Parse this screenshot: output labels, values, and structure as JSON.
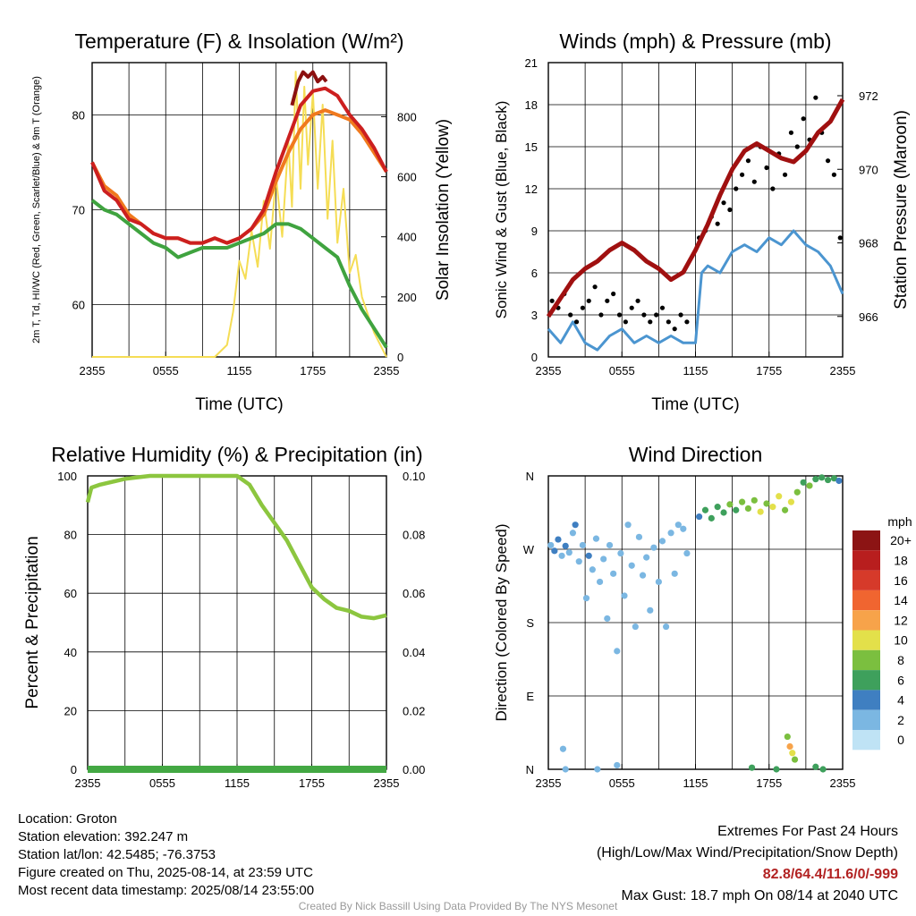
{
  "chart_data": [
    {
      "type": "line",
      "title": "Temperature (F) & Insolation (W/m²)",
      "xlabel": "Time (UTC)",
      "ylabel": "2m T, Td, HI/WC (Red, Green, Scarlet/Blue) & 9m T (Orange)",
      "y2label": "Solar Insolation (Yellow)",
      "x_ticks": [
        "2355",
        "0555",
        "1155",
        "1755",
        "2355"
      ],
      "y_ticks": [
        60,
        70,
        80
      ],
      "y2_ticks": [
        0,
        200,
        400,
        600,
        800
      ],
      "ylim": [
        54.5,
        85.5
      ],
      "y2lim": [
        0,
        980
      ],
      "grid": true,
      "series": [
        {
          "axis": "left",
          "color": "#cc1f1f",
          "x": [
            0,
            1,
            2,
            3,
            4,
            5,
            6,
            7,
            8,
            9,
            10,
            11,
            12,
            13,
            14,
            15,
            16,
            17,
            18,
            19,
            20,
            21,
            22,
            23,
            24
          ],
          "values": [
            75.0,
            72.0,
            71.0,
            69.0,
            68.5,
            67.5,
            67.0,
            67.0,
            66.5,
            66.5,
            67.0,
            66.5,
            67.0,
            68.0,
            70.0,
            74.0,
            77.5,
            81.0,
            82.5,
            82.8,
            82.0,
            80.0,
            78.5,
            76.5,
            74.0
          ]
        },
        {
          "axis": "left",
          "color": "#f07a1e",
          "x": [
            0,
            1,
            2,
            3,
            4,
            5,
            6,
            7,
            8,
            9,
            10,
            11,
            12,
            13,
            14,
            15,
            16,
            17,
            18,
            19,
            20,
            21,
            22,
            23,
            24
          ],
          "values": [
            75.0,
            72.5,
            71.5,
            69.5,
            68.5,
            67.5,
            67.0,
            67.0,
            66.5,
            66.5,
            67.0,
            66.5,
            67.0,
            68.0,
            69.5,
            73.0,
            76.0,
            78.5,
            80.0,
            80.5,
            80.0,
            79.5,
            78.0,
            76.0,
            74.0
          ]
        },
        {
          "axis": "left",
          "color": "#3fa33f",
          "x": [
            0,
            1,
            2,
            3,
            4,
            5,
            6,
            7,
            8,
            9,
            10,
            11,
            12,
            13,
            14,
            15,
            16,
            17,
            18,
            19,
            20,
            21,
            22,
            23,
            24
          ],
          "values": [
            71.0,
            70.0,
            69.5,
            68.5,
            67.5,
            66.5,
            66.0,
            65.0,
            65.5,
            66.0,
            66.0,
            66.0,
            66.5,
            67.0,
            67.5,
            68.5,
            68.5,
            68.0,
            67.0,
            66.0,
            65.0,
            62.0,
            59.5,
            57.5,
            55.5
          ]
        },
        {
          "axis": "left",
          "color": "#8b1010",
          "x": [
            16.3,
            16.8,
            17.2,
            17.6,
            18.0,
            18.4,
            18.8,
            19.1
          ],
          "values": [
            81.0,
            83.5,
            84.5,
            84.0,
            84.5,
            83.5,
            84.0,
            83.5
          ]
        },
        {
          "axis": "right",
          "color": "#f5dd55",
          "x": [
            0,
            10,
            11,
            11.5,
            12,
            12.5,
            13,
            13.5,
            14,
            14.5,
            15,
            15.5,
            16,
            16.3,
            16.6,
            17,
            17.3,
            17.6,
            18,
            18.4,
            18.8,
            19.2,
            19.6,
            20,
            20.5,
            21,
            21.5,
            22,
            23,
            24
          ],
          "values": [
            0,
            0,
            40,
            150,
            320,
            260,
            420,
            300,
            520,
            360,
            600,
            400,
            720,
            500,
            950,
            560,
            900,
            640,
            880,
            560,
            840,
            460,
            720,
            380,
            560,
            280,
            340,
            200,
            80,
            0
          ]
        }
      ]
    },
    {
      "type": "line",
      "title": "Winds (mph) & Pressure (mb)",
      "xlabel": "Time (UTC)",
      "ylabel": "Sonic Wind & Gust (Blue, Black)",
      "y2label": "Station Pressure (Maroon)",
      "x_ticks": [
        "2355",
        "0555",
        "1155",
        "1755",
        "2355"
      ],
      "y_ticks": [
        0,
        3,
        6,
        9,
        12,
        15,
        18,
        21
      ],
      "y2_ticks": [
        966,
        968,
        970,
        972
      ],
      "ylim": [
        0,
        21
      ],
      "y2lim": [
        964.9,
        972.9
      ],
      "grid": true,
      "series": [
        {
          "name_hidden": "wind",
          "axis": "left",
          "color": "#4b95d0",
          "x": [
            0,
            1,
            2,
            3,
            4,
            5,
            6,
            7,
            8,
            9,
            10,
            11,
            12,
            12.5,
            13,
            14,
            15,
            16,
            17,
            18,
            19,
            20,
            21,
            22,
            23,
            24
          ],
          "values": [
            2,
            1,
            2.5,
            1,
            0.5,
            1.5,
            2,
            1,
            1.5,
            1,
            1.5,
            1,
            1,
            6,
            6.5,
            6,
            7.5,
            8,
            7.5,
            8.5,
            8,
            9,
            8,
            7.5,
            6.5,
            4.5
          ]
        },
        {
          "name_hidden": "gust",
          "axis": "left",
          "type": "scatter",
          "color": "#000000",
          "x": [
            0.3,
            0.8,
            1.3,
            1.8,
            2.3,
            2.8,
            3.3,
            3.8,
            4.3,
            4.8,
            5.3,
            5.8,
            6.3,
            6.8,
            7.3,
            7.8,
            8.3,
            8.8,
            9.3,
            9.8,
            10.3,
            10.8,
            11.3,
            12.3,
            12.8,
            13.3,
            13.8,
            14.3,
            14.8,
            15.3,
            15.8,
            16.3,
            16.8,
            17.3,
            17.8,
            18.3,
            18.8,
            19.3,
            19.8,
            20.3,
            20.8,
            21.3,
            21.8,
            22.3,
            22.8,
            23.3,
            23.8
          ],
          "values": [
            4,
            3.5,
            4.5,
            3,
            2.5,
            3.5,
            4,
            5,
            3,
            4,
            4.5,
            3,
            2.5,
            3.5,
            4,
            3,
            2.5,
            3,
            3.5,
            2.5,
            2,
            3,
            2.5,
            8.5,
            9,
            10,
            9.5,
            11,
            10.5,
            12,
            13,
            14,
            12.5,
            15,
            13.5,
            12,
            14.5,
            13,
            16,
            15,
            17,
            15.5,
            18.5,
            16,
            14,
            13,
            8.5
          ]
        },
        {
          "name_hidden": "pressure",
          "axis": "right",
          "color": "#a01010",
          "x": [
            0,
            1,
            2,
            3,
            4,
            5,
            6,
            7,
            8,
            9,
            10,
            11,
            12,
            13,
            14,
            15,
            16,
            17,
            18,
            19,
            20,
            21,
            22,
            23,
            24
          ],
          "values": [
            966.0,
            966.5,
            967.0,
            967.3,
            967.5,
            967.8,
            968.0,
            967.8,
            967.5,
            967.3,
            967.0,
            967.2,
            967.8,
            968.5,
            969.3,
            970.0,
            970.5,
            970.7,
            970.5,
            970.3,
            970.2,
            970.5,
            971.0,
            971.3,
            971.9
          ]
        }
      ]
    },
    {
      "type": "line",
      "title": "Relative Humidity (%) & Precipitation (in)",
      "xlabel": "",
      "ylabel": "Percent & Precipitation",
      "x_ticks": [
        "2355",
        "0555",
        "1155",
        "1755",
        "2355"
      ],
      "y_ticks": [
        0,
        20,
        40,
        60,
        80,
        100
      ],
      "y2_ticks": [
        "0.00",
        "0.02",
        "0.04",
        "0.06",
        "0.08",
        "0.10"
      ],
      "ylim": [
        0,
        100
      ],
      "y2lim": [
        0,
        0.1
      ],
      "grid": true,
      "series": [
        {
          "axis": "left",
          "color": "#8cc63f",
          "x": [
            0,
            0.3,
            1,
            2,
            3,
            4,
            5,
            6,
            7,
            8,
            9,
            10,
            11,
            12,
            13,
            14,
            15,
            16,
            17,
            18,
            19,
            20,
            21,
            22,
            23,
            24
          ],
          "values": [
            91,
            96,
            97,
            98,
            99,
            99.5,
            100,
            100,
            100,
            100,
            100,
            100,
            100,
            100,
            97,
            90,
            84,
            78,
            70,
            62,
            58,
            55,
            54,
            52,
            51.5,
            52.5
          ]
        },
        {
          "axis": "right",
          "color": "#43a843",
          "x": [
            0,
            24
          ],
          "values": [
            0,
            0
          ]
        }
      ]
    },
    {
      "type": "scatter",
      "title": "Wind Direction",
      "xlabel": "",
      "ylabel": "Direction (Colored By Speed)",
      "x_ticks": [
        "2355",
        "0555",
        "1155",
        "1755",
        "2355"
      ],
      "y_ticks": [
        "N",
        "E",
        "S",
        "W",
        "N"
      ],
      "ylim": [
        0,
        360
      ],
      "grid": true,
      "colorbar": {
        "unit": "mph",
        "labels": [
          "0",
          "2",
          "4",
          "6",
          "8",
          "10",
          "12",
          "14",
          "16",
          "18",
          "20+"
        ],
        "colors": [
          "#bfe3f5",
          "#7bb7e2",
          "#3f7fc1",
          "#3ea05c",
          "#7bbf3f",
          "#e3e04a",
          "#f7a34a",
          "#f06530",
          "#d63a2a",
          "#b81e1e",
          "#8c1414"
        ]
      },
      "points": [
        {
          "x": 0.2,
          "dir": 275,
          "speed": 2
        },
        {
          "x": 0.5,
          "dir": 268,
          "speed": 3
        },
        {
          "x": 0.8,
          "dir": 282,
          "speed": 3
        },
        {
          "x": 1.1,
          "dir": 262,
          "speed": 2
        },
        {
          "x": 1.4,
          "dir": 274,
          "speed": 3
        },
        {
          "x": 1.7,
          "dir": 266,
          "speed": 2
        },
        {
          "x": 2.0,
          "dir": 290,
          "speed": 1
        },
        {
          "x": 2.2,
          "dir": 300,
          "speed": 3
        },
        {
          "x": 2.5,
          "dir": 255,
          "speed": 2
        },
        {
          "x": 2.8,
          "dir": 275,
          "speed": 2
        },
        {
          "x": 3.1,
          "dir": 210,
          "speed": 1
        },
        {
          "x": 3.3,
          "dir": 262,
          "speed": 3
        },
        {
          "x": 3.6,
          "dir": 245,
          "speed": 1
        },
        {
          "x": 3.9,
          "dir": 283,
          "speed": 2
        },
        {
          "x": 4.2,
          "dir": 230,
          "speed": 1
        },
        {
          "x": 4.5,
          "dir": 258,
          "speed": 1
        },
        {
          "x": 4.8,
          "dir": 185,
          "speed": 1
        },
        {
          "x": 5.0,
          "dir": 275,
          "speed": 2
        },
        {
          "x": 5.3,
          "dir": 240,
          "speed": 1
        },
        {
          "x": 5.6,
          "dir": 145,
          "speed": 1
        },
        {
          "x": 5.9,
          "dir": 265,
          "speed": 1
        },
        {
          "x": 6.2,
          "dir": 213,
          "speed": 2
        },
        {
          "x": 6.5,
          "dir": 300,
          "speed": 1
        },
        {
          "x": 6.8,
          "dir": 250,
          "speed": 2
        },
        {
          "x": 7.1,
          "dir": 175,
          "speed": 1
        },
        {
          "x": 7.4,
          "dir": 285,
          "speed": 1
        },
        {
          "x": 7.7,
          "dir": 238,
          "speed": 2
        },
        {
          "x": 8.0,
          "dir": 260,
          "speed": 1
        },
        {
          "x": 8.3,
          "dir": 195,
          "speed": 1
        },
        {
          "x": 8.6,
          "dir": 272,
          "speed": 2
        },
        {
          "x": 9.0,
          "dir": 230,
          "speed": 1
        },
        {
          "x": 9.3,
          "dir": 280,
          "speed": 1
        },
        {
          "x": 9.6,
          "dir": 175,
          "speed": 1
        },
        {
          "x": 10.0,
          "dir": 290,
          "speed": 2
        },
        {
          "x": 10.3,
          "dir": 240,
          "speed": 1
        },
        {
          "x": 10.6,
          "dir": 300,
          "speed": 1
        },
        {
          "x": 11.0,
          "dir": 295,
          "speed": 2
        },
        {
          "x": 11.3,
          "dir": 265,
          "speed": 1
        },
        {
          "x": 1.2,
          "dir": 25,
          "speed": 2
        },
        {
          "x": 1.4,
          "dir": 0,
          "speed": 1
        },
        {
          "x": 5.6,
          "dir": 5,
          "speed": 2
        },
        {
          "x": 4.0,
          "dir": 0,
          "speed": 1
        },
        {
          "x": 12.3,
          "dir": 310,
          "speed": 4
        },
        {
          "x": 12.8,
          "dir": 318,
          "speed": 5
        },
        {
          "x": 13.3,
          "dir": 308,
          "speed": 5
        },
        {
          "x": 13.8,
          "dir": 322,
          "speed": 6
        },
        {
          "x": 14.3,
          "dir": 315,
          "speed": 6
        },
        {
          "x": 14.8,
          "dir": 325,
          "speed": 7
        },
        {
          "x": 15.3,
          "dir": 318,
          "speed": 6
        },
        {
          "x": 15.8,
          "dir": 328,
          "speed": 7
        },
        {
          "x": 16.3,
          "dir": 320,
          "speed": 8
        },
        {
          "x": 16.8,
          "dir": 330,
          "speed": 7
        },
        {
          "x": 17.3,
          "dir": 316,
          "speed": 9
        },
        {
          "x": 17.8,
          "dir": 326,
          "speed": 8
        },
        {
          "x": 18.3,
          "dir": 322,
          "speed": 10
        },
        {
          "x": 18.8,
          "dir": 335,
          "speed": 9
        },
        {
          "x": 19.3,
          "dir": 318,
          "speed": 8
        },
        {
          "x": 19.8,
          "dir": 328,
          "speed": 10
        },
        {
          "x": 20.3,
          "dir": 340,
          "speed": 8
        },
        {
          "x": 20.8,
          "dir": 352,
          "speed": 6
        },
        {
          "x": 21.3,
          "dir": 348,
          "speed": 7
        },
        {
          "x": 21.8,
          "dir": 356,
          "speed": 6
        },
        {
          "x": 22.3,
          "dir": 358,
          "speed": 5
        },
        {
          "x": 22.8,
          "dir": 355,
          "speed": 6
        },
        {
          "x": 23.3,
          "dir": 357,
          "speed": 5
        },
        {
          "x": 23.7,
          "dir": 354,
          "speed": 4
        },
        {
          "x": 19.5,
          "dir": 40,
          "speed": 7
        },
        {
          "x": 19.7,
          "dir": 28,
          "speed": 11
        },
        {
          "x": 19.9,
          "dir": 20,
          "speed": 9
        },
        {
          "x": 20.1,
          "dir": 12,
          "speed": 8
        },
        {
          "x": 16.6,
          "dir": 2,
          "speed": 6
        },
        {
          "x": 18.6,
          "dir": 0,
          "speed": 5
        },
        {
          "x": 21.8,
          "dir": 3,
          "speed": 6
        },
        {
          "x": 22.4,
          "dir": 0,
          "speed": 5
        }
      ]
    }
  ],
  "info": {
    "location": "Location: Groton",
    "elevation": "Station elevation: 392.247 m",
    "latlon": "Station lat/lon: 42.5485; -76.3753",
    "created": "Figure created on Thu, 2025-08-14, at 23:59 UTC",
    "recent": "Most recent data timestamp: 2025/08/14 23:55:00"
  },
  "extremes": {
    "title": "Extremes For Past 24 Hours",
    "subtitle": "(High/Low/Max Wind/Precipitation/Snow Depth)",
    "values": "82.8/64.4/11.6/0/-999",
    "max_gust": "Max Gust: 18.7 mph On 08/14 at 2040 UTC"
  },
  "credit": "Created By Nick Bassill Using Data Provided By The NYS Mesonet"
}
